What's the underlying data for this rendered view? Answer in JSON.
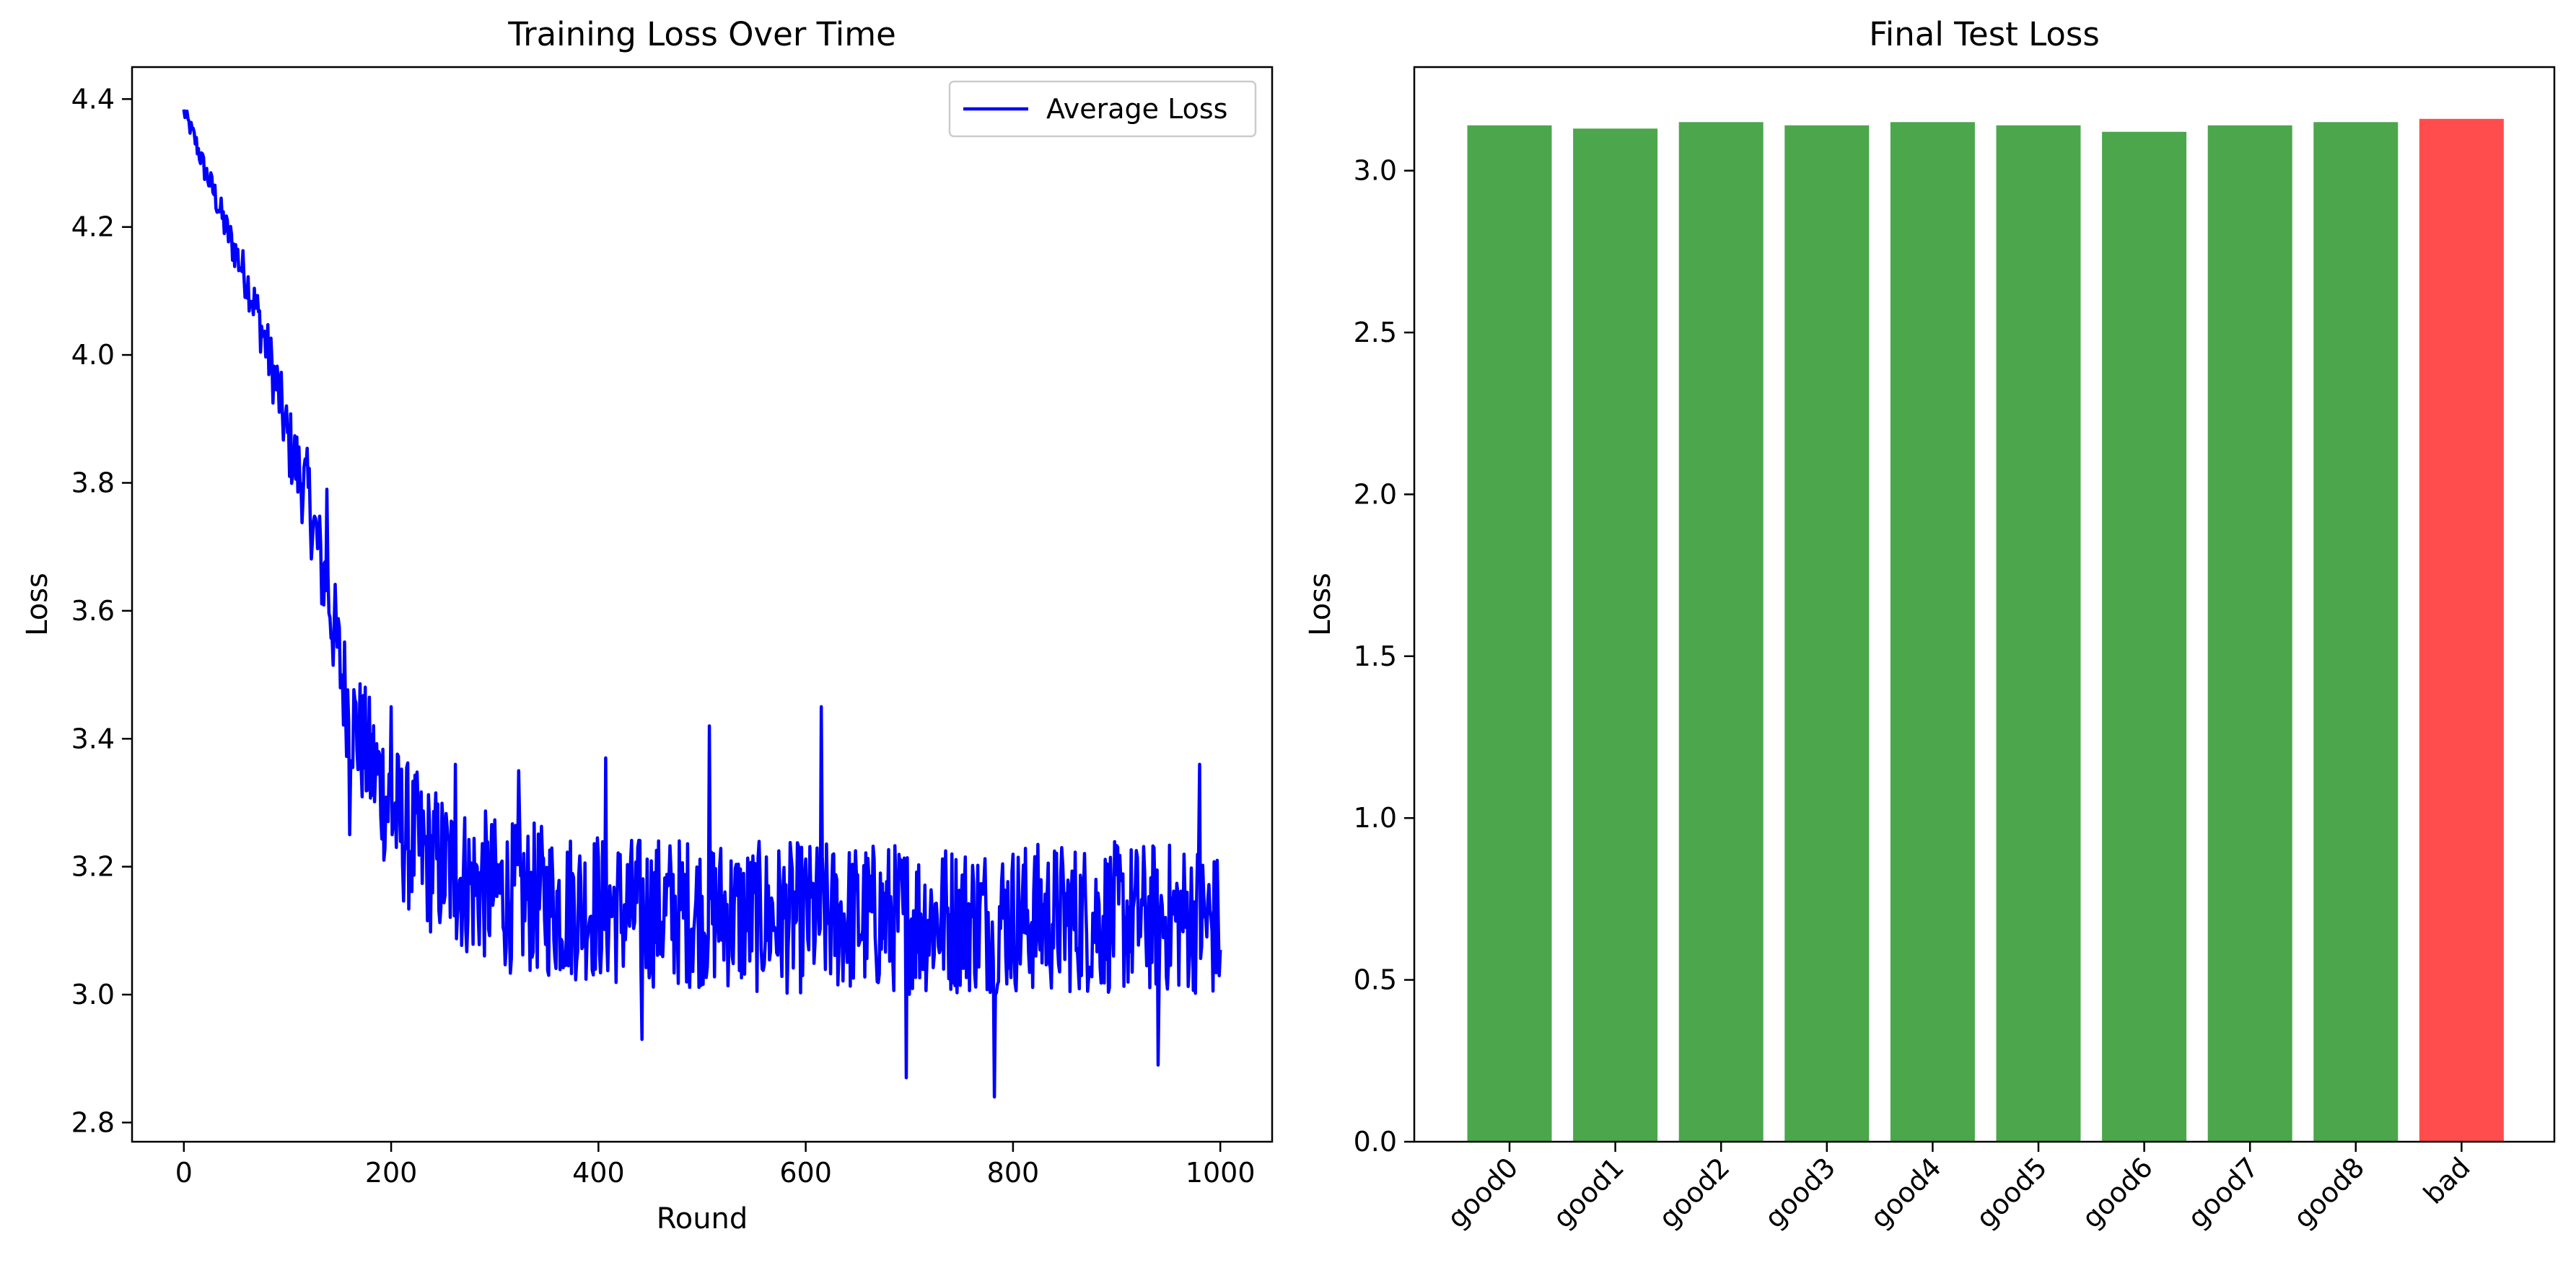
{
  "chart_data": [
    {
      "type": "line",
      "title": "Training Loss Over Time",
      "xlabel": "Round",
      "ylabel": "Loss",
      "xlim": [
        -50,
        1050
      ],
      "ylim": [
        2.77,
        4.45
      ],
      "x_ticks": [
        0,
        200,
        400,
        600,
        800,
        1000
      ],
      "x_tick_labels": [
        "0",
        "200",
        "400",
        "600",
        "800",
        "1000"
      ],
      "y_ticks": [
        2.8,
        3.0,
        3.2,
        3.4,
        3.6,
        3.8,
        4.0,
        4.2,
        4.4
      ],
      "y_tick_labels": [
        "2.8",
        "3.0",
        "3.2",
        "3.4",
        "3.6",
        "3.8",
        "4.0",
        "4.2",
        "4.4"
      ],
      "grid": false,
      "legend": {
        "position": "top-right",
        "entries": [
          "Average Loss"
        ]
      },
      "series": [
        {
          "name": "Average Loss",
          "color": "#0000ff",
          "points": [
            [
              0,
              4.38
            ],
            [
              10,
              4.34
            ],
            [
              20,
              4.29
            ],
            [
              30,
              4.25
            ],
            [
              40,
              4.2
            ],
            [
              50,
              4.16
            ],
            [
              60,
              4.12
            ],
            [
              70,
              4.07
            ],
            [
              80,
              4.01
            ],
            [
              90,
              3.95
            ],
            [
              100,
              3.87
            ],
            [
              110,
              3.82
            ],
            [
              120,
              3.78
            ],
            [
              130,
              3.69
            ],
            [
              140,
              3.62
            ],
            [
              150,
              3.52
            ],
            [
              160,
              3.44
            ],
            [
              170,
              3.4
            ],
            [
              180,
              3.36
            ],
            [
              190,
              3.33
            ],
            [
              200,
              3.29
            ],
            [
              210,
              3.26
            ],
            [
              220,
              3.24
            ],
            [
              230,
              3.22
            ],
            [
              240,
              3.21
            ],
            [
              250,
              3.2
            ],
            [
              260,
              3.19
            ],
            [
              270,
              3.18
            ],
            [
              280,
              3.17
            ],
            [
              290,
              3.17
            ],
            [
              300,
              3.16
            ],
            [
              320,
              3.15
            ],
            [
              340,
              3.15
            ],
            [
              360,
              3.14
            ],
            [
              380,
              3.14
            ],
            [
              400,
              3.14
            ],
            [
              420,
              3.13
            ],
            [
              440,
              3.13
            ],
            [
              460,
              3.13
            ],
            [
              480,
              3.13
            ],
            [
              500,
              3.13
            ],
            [
              520,
              3.13
            ],
            [
              540,
              3.12
            ],
            [
              560,
              3.12
            ],
            [
              580,
              3.12
            ],
            [
              600,
              3.12
            ],
            [
              620,
              3.12
            ],
            [
              640,
              3.12
            ],
            [
              660,
              3.12
            ],
            [
              680,
              3.12
            ],
            [
              700,
              3.12
            ],
            [
              720,
              3.12
            ],
            [
              740,
              3.12
            ],
            [
              760,
              3.12
            ],
            [
              780,
              3.12
            ],
            [
              800,
              3.12
            ],
            [
              820,
              3.12
            ],
            [
              840,
              3.12
            ],
            [
              860,
              3.12
            ],
            [
              880,
              3.12
            ],
            [
              900,
              3.12
            ],
            [
              920,
              3.12
            ],
            [
              940,
              3.12
            ],
            [
              960,
              3.12
            ],
            [
              980,
              3.12
            ],
            [
              1000,
              3.1
            ]
          ],
          "noise_start": 30,
          "noise_end": 0.13,
          "spikes": [
            [
              138,
              3.79
            ],
            [
              152,
              3.5
            ],
            [
              160,
              3.25
            ],
            [
              200,
              3.45
            ],
            [
              262,
              3.36
            ],
            [
              323,
              3.35
            ],
            [
              407,
              3.37
            ],
            [
              442,
              2.93
            ],
            [
              507,
              3.42
            ],
            [
              615,
              3.45
            ],
            [
              697,
              2.87
            ],
            [
              782,
              2.84
            ],
            [
              940,
              2.89
            ],
            [
              980,
              3.36
            ]
          ]
        }
      ]
    },
    {
      "type": "bar",
      "title": "Final Test Loss",
      "xlabel": "",
      "ylabel": "Loss",
      "ylim": [
        0,
        3.32
      ],
      "categories": [
        "good0",
        "good1",
        "good2",
        "good3",
        "good4",
        "good5",
        "good6",
        "good7",
        "good8",
        "bad"
      ],
      "values": [
        3.14,
        3.13,
        3.15,
        3.14,
        3.15,
        3.14,
        3.12,
        3.14,
        3.15,
        3.16
      ],
      "colors": [
        "#4ca64c",
        "#4ca64c",
        "#4ca64c",
        "#4ca64c",
        "#4ca64c",
        "#4ca64c",
        "#4ca64c",
        "#4ca64c",
        "#4ca64c",
        "#ff4c4c"
      ],
      "y_ticks": [
        0.0,
        0.5,
        1.0,
        1.5,
        2.0,
        2.5,
        3.0
      ],
      "y_tick_labels": [
        "0.0",
        "0.5",
        "1.0",
        "1.5",
        "2.0",
        "2.5",
        "3.0"
      ],
      "x_tick_rotation_deg": 45,
      "grid": false
    }
  ]
}
